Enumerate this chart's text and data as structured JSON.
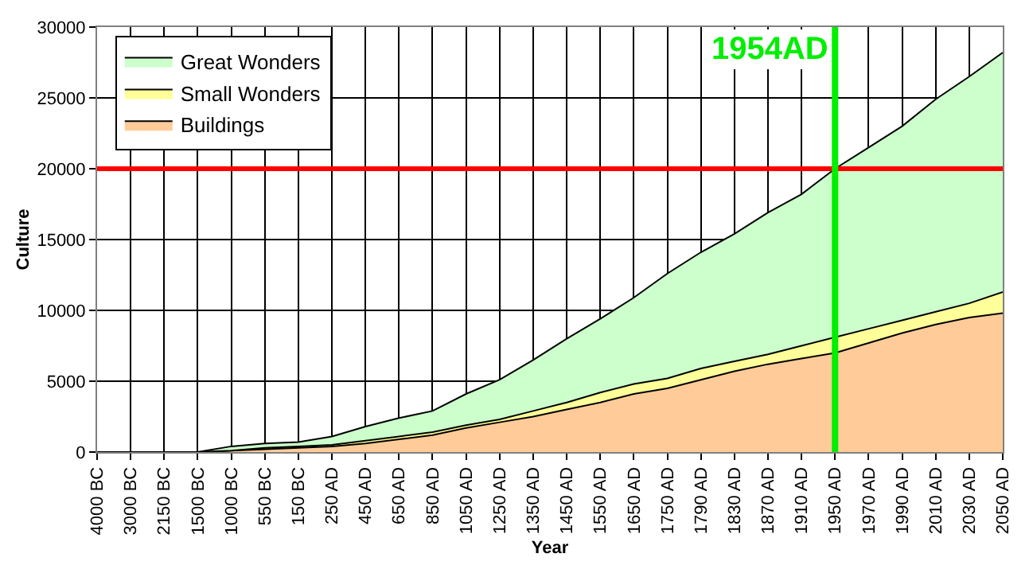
{
  "chart_data": {
    "type": "area",
    "stacked": true,
    "xlabel": "Year",
    "ylabel": "Culture",
    "categories": [
      "4000 BC",
      "3000 BC",
      "2150 BC",
      "1500 BC",
      "1000 BC",
      "550 BC",
      "150 BC",
      "250 AD",
      "450 AD",
      "650 AD",
      "850 AD",
      "1050 AD",
      "1250 AD",
      "1350 AD",
      "1450 AD",
      "1550 AD",
      "1650 AD",
      "1750 AD",
      "1790 AD",
      "1830 AD",
      "1870 AD",
      "1910 AD",
      "1950 AD",
      "1970 AD",
      "1990 AD",
      "2010 AD",
      "2030 AD",
      "2050 AD"
    ],
    "series": [
      {
        "name": "Buildings",
        "color": "#ffcc99",
        "values": [
          0,
          0,
          0,
          0,
          100,
          200,
          300,
          400,
          600,
          900,
          1200,
          1700,
          2100,
          2500,
          3000,
          3500,
          4100,
          4500,
          5100,
          5700,
          6200,
          6600,
          7000,
          7700,
          8400,
          9000,
          9500,
          9800
        ]
      },
      {
        "name": "Small Wonders",
        "color": "#ffff99",
        "values": [
          0,
          0,
          0,
          0,
          0,
          100,
          100,
          100,
          200,
          200,
          200,
          200,
          200,
          400,
          500,
          700,
          700,
          700,
          800,
          700,
          700,
          900,
          1100,
          1000,
          900,
          900,
          1000,
          1500
        ]
      },
      {
        "name": "Great Wonders",
        "color": "#ccffcc",
        "values": [
          0,
          0,
          0,
          0,
          300,
          300,
          300,
          600,
          1000,
          1300,
          1500,
          2200,
          2800,
          3600,
          4500,
          5200,
          6100,
          7400,
          8200,
          9000,
          10000,
          10700,
          11900,
          12800,
          13700,
          15000,
          16000,
          16900
        ]
      }
    ],
    "ylim": [
      0,
      30000
    ],
    "yticks": [
      0,
      5000,
      10000,
      15000,
      20000,
      25000,
      30000
    ],
    "grid": true,
    "legend": "top left",
    "ref_lines": [
      {
        "axis": "y",
        "value": 20000,
        "label": null,
        "color": "#ff0000"
      },
      {
        "axis": "x",
        "value": "1950 AD",
        "label": "1954AD",
        "color": "#00ee00"
      }
    ]
  }
}
